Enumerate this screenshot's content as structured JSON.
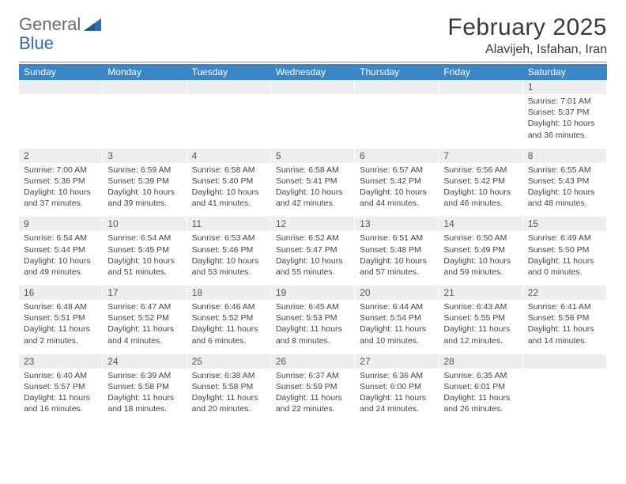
{
  "logo": {
    "word1": "General",
    "word2": "Blue"
  },
  "title": "February 2025",
  "location": "Alavijeh, Isfahan, Iran",
  "colors": {
    "header_bar": "#3b86c6",
    "header_text": "#ffffff",
    "daynum_bg": "#eeeeee",
    "text": "#444444",
    "logo_gray": "#6a6a6a",
    "logo_blue": "#2f6fb3"
  },
  "layout": {
    "columns": 7,
    "rows": 5,
    "first_day_column": 6,
    "days_in_month": 28
  },
  "dow": [
    "Sunday",
    "Monday",
    "Tuesday",
    "Wednesday",
    "Thursday",
    "Friday",
    "Saturday"
  ],
  "days": {
    "1": {
      "sunrise": "7:01 AM",
      "sunset": "5:37 PM",
      "daylight": "10 hours and 36 minutes."
    },
    "2": {
      "sunrise": "7:00 AM",
      "sunset": "5:38 PM",
      "daylight": "10 hours and 37 minutes."
    },
    "3": {
      "sunrise": "6:59 AM",
      "sunset": "5:39 PM",
      "daylight": "10 hours and 39 minutes."
    },
    "4": {
      "sunrise": "6:58 AM",
      "sunset": "5:40 PM",
      "daylight": "10 hours and 41 minutes."
    },
    "5": {
      "sunrise": "6:58 AM",
      "sunset": "5:41 PM",
      "daylight": "10 hours and 42 minutes."
    },
    "6": {
      "sunrise": "6:57 AM",
      "sunset": "5:42 PM",
      "daylight": "10 hours and 44 minutes."
    },
    "7": {
      "sunrise": "6:56 AM",
      "sunset": "5:42 PM",
      "daylight": "10 hours and 46 minutes."
    },
    "8": {
      "sunrise": "6:55 AM",
      "sunset": "5:43 PM",
      "daylight": "10 hours and 48 minutes."
    },
    "9": {
      "sunrise": "6:54 AM",
      "sunset": "5:44 PM",
      "daylight": "10 hours and 49 minutes."
    },
    "10": {
      "sunrise": "6:54 AM",
      "sunset": "5:45 PM",
      "daylight": "10 hours and 51 minutes."
    },
    "11": {
      "sunrise": "6:53 AM",
      "sunset": "5:46 PM",
      "daylight": "10 hours and 53 minutes."
    },
    "12": {
      "sunrise": "6:52 AM",
      "sunset": "5:47 PM",
      "daylight": "10 hours and 55 minutes."
    },
    "13": {
      "sunrise": "6:51 AM",
      "sunset": "5:48 PM",
      "daylight": "10 hours and 57 minutes."
    },
    "14": {
      "sunrise": "6:50 AM",
      "sunset": "5:49 PM",
      "daylight": "10 hours and 59 minutes."
    },
    "15": {
      "sunrise": "6:49 AM",
      "sunset": "5:50 PM",
      "daylight": "11 hours and 0 minutes."
    },
    "16": {
      "sunrise": "6:48 AM",
      "sunset": "5:51 PM",
      "daylight": "11 hours and 2 minutes."
    },
    "17": {
      "sunrise": "6:47 AM",
      "sunset": "5:52 PM",
      "daylight": "11 hours and 4 minutes."
    },
    "18": {
      "sunrise": "6:46 AM",
      "sunset": "5:52 PM",
      "daylight": "11 hours and 6 minutes."
    },
    "19": {
      "sunrise": "6:45 AM",
      "sunset": "5:53 PM",
      "daylight": "11 hours and 8 minutes."
    },
    "20": {
      "sunrise": "6:44 AM",
      "sunset": "5:54 PM",
      "daylight": "11 hours and 10 minutes."
    },
    "21": {
      "sunrise": "6:43 AM",
      "sunset": "5:55 PM",
      "daylight": "11 hours and 12 minutes."
    },
    "22": {
      "sunrise": "6:41 AM",
      "sunset": "5:56 PM",
      "daylight": "11 hours and 14 minutes."
    },
    "23": {
      "sunrise": "6:40 AM",
      "sunset": "5:57 PM",
      "daylight": "11 hours and 16 minutes."
    },
    "24": {
      "sunrise": "6:39 AM",
      "sunset": "5:58 PM",
      "daylight": "11 hours and 18 minutes."
    },
    "25": {
      "sunrise": "6:38 AM",
      "sunset": "5:58 PM",
      "daylight": "11 hours and 20 minutes."
    },
    "26": {
      "sunrise": "6:37 AM",
      "sunset": "5:59 PM",
      "daylight": "11 hours and 22 minutes."
    },
    "27": {
      "sunrise": "6:36 AM",
      "sunset": "6:00 PM",
      "daylight": "11 hours and 24 minutes."
    },
    "28": {
      "sunrise": "6:35 AM",
      "sunset": "6:01 PM",
      "daylight": "11 hours and 26 minutes."
    }
  },
  "labels": {
    "sunrise": "Sunrise:",
    "sunset": "Sunset:",
    "daylight": "Daylight:"
  }
}
